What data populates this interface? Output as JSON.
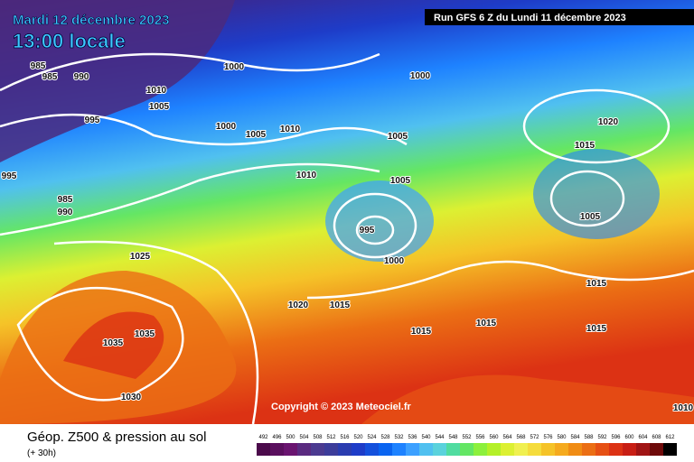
{
  "header": {
    "date": "Mardi 12 décembre 2023",
    "time": "13:00 locale",
    "run": "Run GFS 6 Z du Lundi 11 décembre 2023"
  },
  "copyright": "Copyright © 2023 Meteociel.fr",
  "footer": {
    "title": "Géop. Z500 & pression au sol",
    "lead": "(+ 30h)"
  },
  "colorbar": {
    "labels": [
      "492",
      "496",
      "500",
      "504",
      "508",
      "512",
      "516",
      "520",
      "524",
      "528",
      "532",
      "536",
      "540",
      "544",
      "548",
      "552",
      "556",
      "560",
      "564",
      "568",
      "572",
      "576",
      "580",
      "584",
      "588",
      "592",
      "596",
      "600",
      "604",
      "608",
      "612"
    ],
    "colors": [
      "#4b0a4b",
      "#5a0f5e",
      "#6a1470",
      "#5a2a80",
      "#4b3a90",
      "#3c3c9a",
      "#2a3cb0",
      "#1e3cc8",
      "#1450dc",
      "#0a64f0",
      "#1e82ff",
      "#3ca0ff",
      "#50c0f0",
      "#5ad2dc",
      "#50dca0",
      "#64e664",
      "#8cf03c",
      "#b4f028",
      "#dcf032",
      "#f0f050",
      "#f5dc3c",
      "#f5c328",
      "#f5aa1e",
      "#f08c14",
      "#eb6e14",
      "#e65014",
      "#dc3214",
      "#c81e14",
      "#a01414",
      "#6e0a0a",
      "#000000"
    ]
  },
  "isobar_labels": [
    "985",
    "985",
    "990",
    "1000",
    "1010",
    "1005",
    "995",
    "1000",
    "1005",
    "1010",
    "1000",
    "1005",
    "1020",
    "1015",
    "995",
    "985",
    "990",
    "1010",
    "1005",
    "995",
    "1005",
    "1000",
    "1025",
    "1020",
    "1015",
    "1015",
    "1015",
    "1015",
    "1015",
    "1035",
    "1035",
    "1030",
    "1010"
  ]
}
